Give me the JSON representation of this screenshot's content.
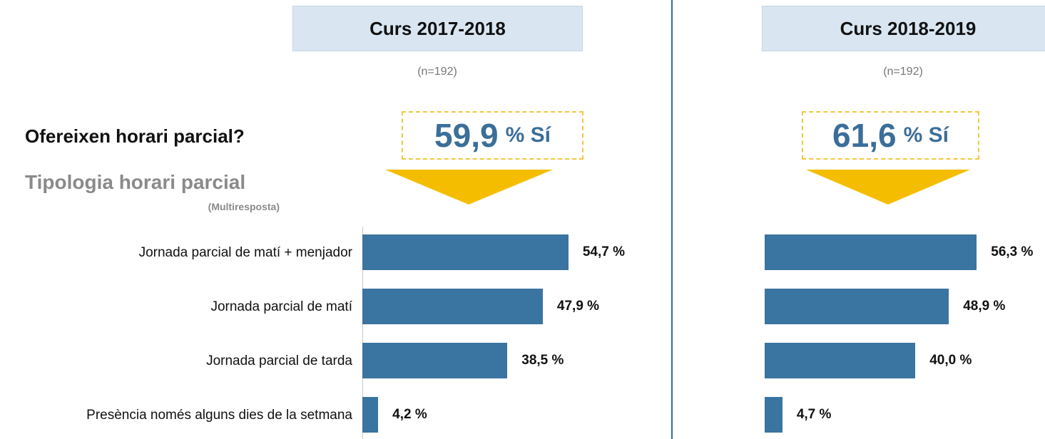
{
  "question": "Ofereixen horari parcial?",
  "subheading": "Tipologia horari parcial",
  "note": "(Multiresposta)",
  "chart_data": [
    {
      "type": "bar",
      "orientation": "horizontal",
      "title": "Curs 2017-2018",
      "subtitle": "(n=192)",
      "highlight": {
        "value": 59.9,
        "label": "59,9",
        "suffix": "% Sí"
      },
      "categories": [
        "Jornada parcial de matí + menjador",
        "Jornada parcial de matí",
        "Jornada parcial de tarda",
        "Presència només alguns dies de la setmana"
      ],
      "values": [
        54.7,
        47.9,
        38.5,
        4.2
      ],
      "value_labels": [
        "54,7 %",
        "47,9 %",
        "38,5 %",
        "4,2 %"
      ],
      "color": "#3a74a0",
      "axis_line": true
    },
    {
      "type": "bar",
      "orientation": "horizontal",
      "title": "Curs 2018-2019",
      "subtitle": "(n=192)",
      "highlight": {
        "value": 61.6,
        "label": "61,6",
        "suffix": "% Sí"
      },
      "categories": [
        null,
        null,
        null,
        null
      ],
      "values": [
        56.3,
        48.9,
        40.0,
        4.7
      ],
      "value_labels": [
        "56,3 %",
        "48,9 %",
        "40,0 %",
        "4,7 %"
      ],
      "color": "#3a74a0",
      "axis_line": false
    }
  ]
}
